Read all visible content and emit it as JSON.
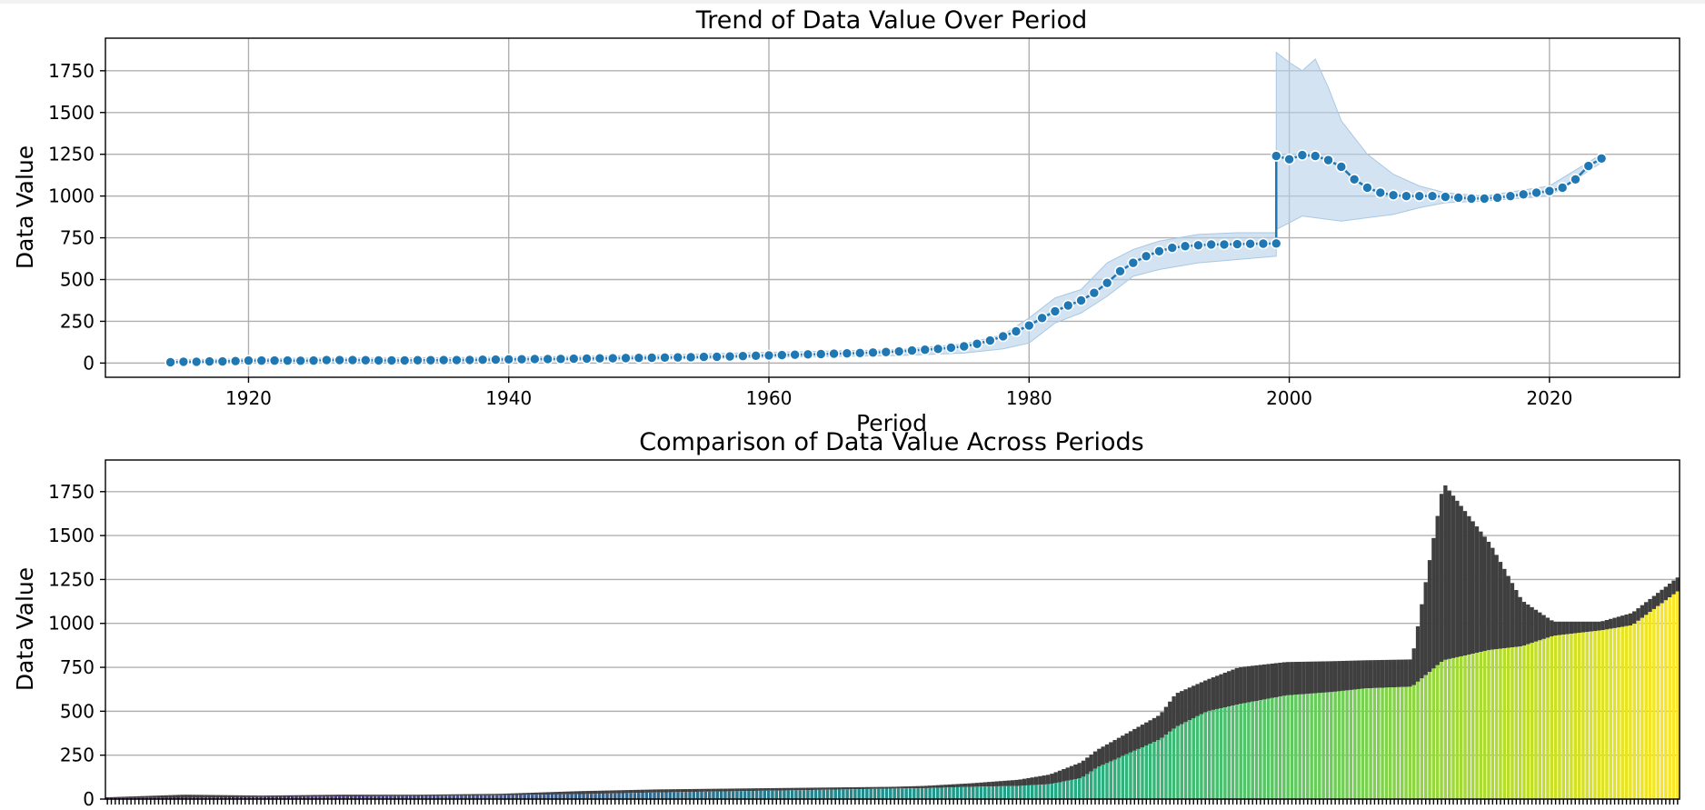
{
  "chart_data": [
    {
      "type": "line",
      "title": "Trend of Data Value Over Period",
      "xlabel": "Period",
      "ylabel": "Data Value",
      "xlim": [
        1909,
        2030
      ],
      "ylim": [
        -85,
        1945
      ],
      "xticks": [
        1920,
        1940,
        1960,
        1980,
        2000,
        2020
      ],
      "yticks": [
        0,
        250,
        500,
        750,
        1000,
        1250,
        1500,
        1750
      ],
      "grid": true,
      "line_color": "#1f77b4",
      "band_color": "#b7d1e8",
      "series": [
        {
          "x": [
            1914,
            1915,
            1916,
            1917,
            1918,
            1919,
            1920,
            1921,
            1922,
            1923,
            1924,
            1925,
            1926,
            1927,
            1928,
            1929,
            1930,
            1931,
            1932,
            1933,
            1934,
            1935,
            1936,
            1937,
            1938,
            1939,
            1940,
            1941,
            1942,
            1943,
            1944,
            1945,
            1946,
            1947,
            1948,
            1949,
            1950,
            1951,
            1952,
            1953,
            1954,
            1955,
            1956,
            1957,
            1958,
            1959,
            1960,
            1961,
            1962,
            1963,
            1964,
            1965,
            1966,
            1967,
            1968,
            1969,
            1970,
            1971,
            1972,
            1973,
            1974,
            1975,
            1976,
            1977,
            1978,
            1979,
            1980,
            1981,
            1982,
            1983,
            1984,
            1985,
            1986,
            1987,
            1988,
            1989,
            1990,
            1991,
            1992,
            1993,
            1994,
            1995,
            1996,
            1997,
            1998,
            1999,
            1999,
            2000,
            2001,
            2002,
            2003,
            2004,
            2005,
            2006,
            2007,
            2008,
            2009,
            2010,
            2011,
            2012,
            2013,
            2014,
            2015,
            2016,
            2017,
            2018,
            2019,
            2020,
            2021,
            2022,
            2023,
            2024
          ],
          "y": [
            5,
            8,
            8,
            10,
            10,
            12,
            15,
            15,
            15,
            15,
            14,
            15,
            18,
            18,
            18,
            17,
            16,
            16,
            16,
            17,
            17,
            18,
            18,
            19,
            20,
            21,
            22,
            23,
            24,
            24,
            25,
            26,
            27,
            28,
            29,
            30,
            31,
            32,
            33,
            34,
            35,
            37,
            38,
            40,
            42,
            44,
            46,
            48,
            50,
            52,
            54,
            56,
            58,
            60,
            63,
            66,
            70,
            75,
            80,
            85,
            92,
            100,
            115,
            135,
            160,
            190,
            225,
            270,
            310,
            345,
            375,
            420,
            480,
            550,
            600,
            640,
            670,
            690,
            700,
            705,
            710,
            710,
            712,
            714,
            715,
            716,
            1240,
            1220,
            1245,
            1240,
            1215,
            1175,
            1100,
            1050,
            1020,
            1005,
            1000,
            1000,
            1000,
            995,
            990,
            985,
            985,
            990,
            1000,
            1010,
            1020,
            1030,
            1050,
            1100,
            1180,
            1225
          ]
        }
      ],
      "band": {
        "x": [
          1914,
          1920,
          1925,
          1930,
          1940,
          1950,
          1960,
          1970,
          1975,
          1978,
          1980,
          1982,
          1984,
          1986,
          1988,
          1990,
          1993,
          1996,
          1999,
          1999,
          2000,
          2001,
          2002,
          2003,
          2004,
          2006,
          2008,
          2010,
          2012,
          2015,
          2020,
          2024
        ],
        "lower": [
          0,
          0,
          0,
          5,
          10,
          20,
          35,
          45,
          60,
          85,
          120,
          240,
          300,
          400,
          520,
          560,
          600,
          620,
          640,
          800,
          840,
          880,
          870,
          860,
          850,
          870,
          890,
          930,
          960,
          970,
          1000,
          1200
        ],
        "upper": [
          20,
          25,
          30,
          30,
          35,
          45,
          65,
          80,
          115,
          170,
          270,
          390,
          440,
          600,
          680,
          730,
          770,
          780,
          780,
          1860,
          1800,
          1750,
          1820,
          1650,
          1450,
          1250,
          1130,
          1060,
          1020,
          1000,
          1060,
          1250
        ]
      }
    },
    {
      "type": "bar",
      "title": "Comparison of Data Value Across Periods",
      "ylabel": "Data Value",
      "ylim": [
        0,
        1930
      ],
      "yticks": [
        0,
        250,
        500,
        750,
        1000,
        1250,
        1500,
        1750
      ],
      "grid": true,
      "colormap": "viridis",
      "bar_count": 400,
      "error_color": "#3f3f3f",
      "profile_fraction": [
        0,
        0.05,
        0.1,
        0.15,
        0.2,
        0.25,
        0.3,
        0.35,
        0.4,
        0.45,
        0.5,
        0.52,
        0.55,
        0.58,
        0.6,
        0.62,
        0.63,
        0.65,
        0.67,
        0.68,
        0.7,
        0.72,
        0.75,
        0.78,
        0.8,
        0.83,
        0.85,
        0.88,
        0.9,
        0.92,
        0.95,
        0.97,
        1
      ],
      "profile_value": [
        5,
        8,
        12,
        15,
        18,
        22,
        28,
        38,
        45,
        52,
        60,
        62,
        70,
        75,
        85,
        120,
        180,
        260,
        340,
        410,
        500,
        540,
        590,
        610,
        630,
        640,
        790,
        850,
        870,
        930,
        960,
        990,
        1190
      ],
      "profile_upper": [
        10,
        25,
        20,
        25,
        25,
        30,
        45,
        55,
        60,
        65,
        70,
        75,
        90,
        110,
        140,
        210,
        280,
        380,
        480,
        600,
        680,
        750,
        780,
        785,
        790,
        795,
        1800,
        1450,
        1130,
        1010,
        1010,
        1060,
        1270
      ]
    }
  ]
}
